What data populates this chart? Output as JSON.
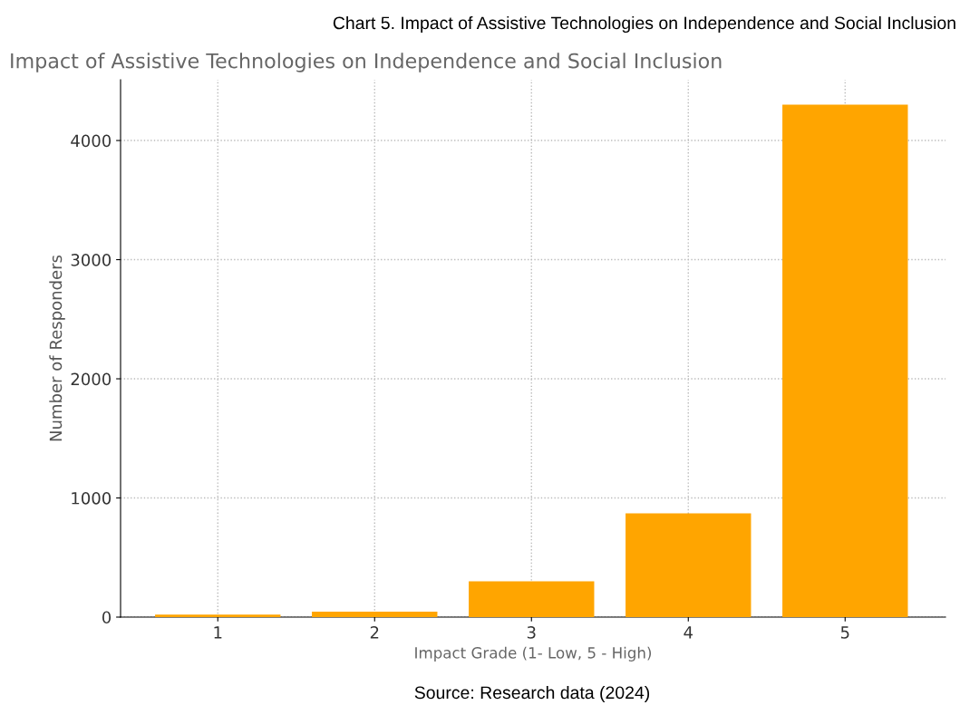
{
  "chart_data": {
    "type": "bar",
    "title": "Chart 5. Impact of Assistive Technologies on Independence and Social Inclusion",
    "subtitle": "Impact of Assistive Technologies on Independence and Social Inclusion",
    "xlabel": "Impact Grade (1- Low, 5 - High)",
    "ylabel": "Number of Responders",
    "categories": [
      "1",
      "2",
      "3",
      "4",
      "5"
    ],
    "values": [
      20,
      45,
      300,
      870,
      4300
    ],
    "color": "#ffa500",
    "ylim": [
      0,
      4510
    ],
    "yticks": [
      0,
      1000,
      2000,
      3000,
      4000
    ],
    "grid": true,
    "annotations": [
      "Source: Research data (2024)"
    ]
  }
}
